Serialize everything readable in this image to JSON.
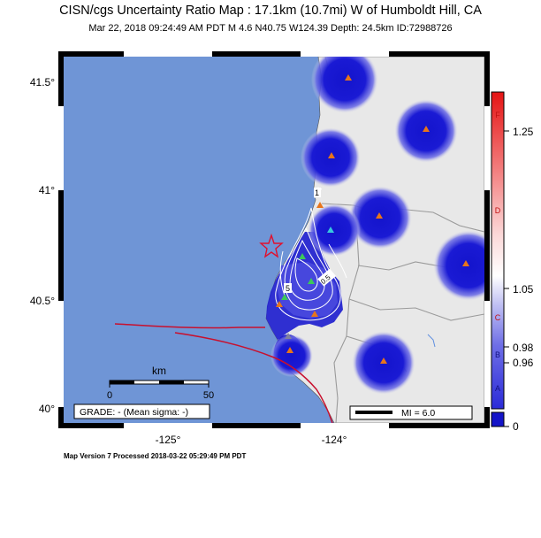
{
  "header": {
    "title": "CISN/cgs Uncertainty Ratio Map : 17.1km (10.7mi) W of Humboldt Hill, CA",
    "subtitle": "Mar 22, 2018 09:24:49 AM PDT   M 4.6   N40.75 W124.39   Depth: 24.5km   ID:72988726"
  },
  "map": {
    "lat_ticks": [
      {
        "value": 41.5,
        "label": "41.5°"
      },
      {
        "value": 41.0,
        "label": "41°"
      },
      {
        "value": 40.5,
        "label": "40.5°"
      },
      {
        "value": 40.0,
        "label": "40°"
      }
    ],
    "lon_ticks": [
      {
        "value": -125,
        "label": "-125°"
      },
      {
        "value": -124,
        "label": "-124°"
      }
    ],
    "epicenter": {
      "lat": 40.75,
      "lon": -124.39
    },
    "colors": {
      "ocean": "#6f95d6",
      "land": "#e8e8e8",
      "fault": "#c8102e",
      "station_blob": "#1010d0",
      "station": "#e8751a"
    },
    "scale_bar": {
      "title": "km",
      "start_label": "0",
      "end_label": "50"
    },
    "grade_box": "GRADE: - (Mean sigma: -)",
    "mi_legend": "MI = 6.0",
    "contour_labels": [
      "1",
      "5",
      "0.5"
    ]
  },
  "colorbar": {
    "letters": [
      "F",
      "D",
      "C",
      "B",
      "A"
    ],
    "values": [
      "1.25",
      "1.05",
      "0.98",
      "0.96",
      "0"
    ]
  },
  "footer": "Map Version 7 Processed 2018-03-22 05:29:49 PM PDT"
}
